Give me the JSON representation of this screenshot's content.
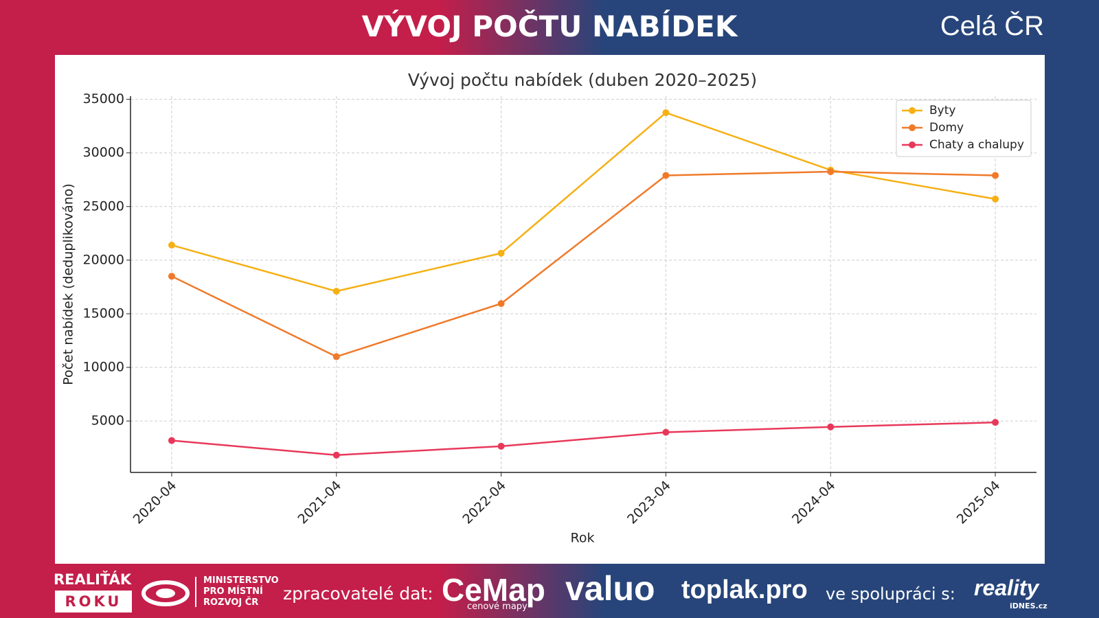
{
  "header": {
    "title": "VÝVOJ POČTU NABÍDEK",
    "region": "Celá ČR"
  },
  "chart_data": {
    "type": "line",
    "title": "Vývoj počtu nabídek (duben 2020–2025)",
    "x_label": "Rok",
    "y_label": "Počet nabídek (deduplikováno)",
    "categories": [
      "2020-04",
      "2021-04",
      "2022-04",
      "2023-04",
      "2024-04",
      "2025-04"
    ],
    "series": [
      {
        "name": "Byty",
        "color": "#f5b014",
        "values": [
          21400,
          17100,
          20650,
          33750,
          28400,
          25700
        ]
      },
      {
        "name": "Domy",
        "color": "#f07a2a",
        "values": [
          18500,
          11000,
          15950,
          27900,
          28250,
          27900
        ]
      },
      {
        "name": "Chaty a chalupy",
        "color": "#e8385a",
        "values": [
          3180,
          1820,
          2650,
          3950,
          4450,
          4870
        ]
      }
    ],
    "ylim": [
      205,
      35295
    ],
    "yticks": [
      5000,
      10000,
      15000,
      20000,
      25000,
      30000,
      35000
    ],
    "grid": true,
    "legend": "upper right"
  },
  "footer": {
    "brand_top": "REALIŤÁK",
    "brand_bottom": "ROKU",
    "ministry": [
      "MINISTERSTVO",
      "PRO MÍSTNÍ",
      "ROZVOJ ČR"
    ],
    "processors_label": "zpracovatelé dat:",
    "cemap": "CeMap",
    "cemap_sub": "cenové mapy",
    "valuo": "valuo",
    "toplak": "toplak.pro",
    "cooperation_label": "ve spolupráci s:",
    "reality": "reality",
    "reality_sub": "iDNES.cz"
  }
}
